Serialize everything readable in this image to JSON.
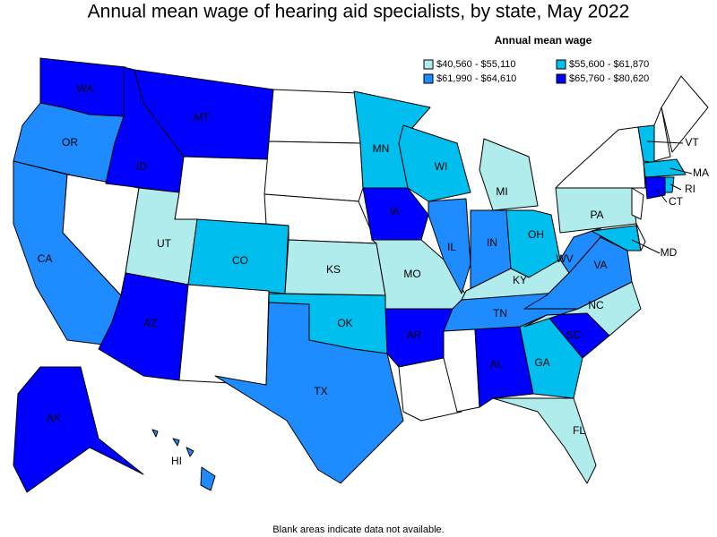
{
  "map": {
    "title": "Annual mean wage of hearing aid specialists, by state, May 2022",
    "legend_title": "Annual mean wage",
    "bins": [
      {
        "label": "$40,560 - $55,110",
        "color": "#b0ecec"
      },
      {
        "label": "$55,600 - $61,870",
        "color": "#00bfef"
      },
      {
        "label": "$61,990 - $64,610",
        "color": "#1e8cff"
      },
      {
        "label": "$65,760 - $80,620",
        "color": "#0000ff"
      }
    ],
    "states": [
      {
        "abbr": "WA",
        "bin": 3
      },
      {
        "abbr": "OR",
        "bin": 2
      },
      {
        "abbr": "CA",
        "bin": 2
      },
      {
        "abbr": "ID",
        "bin": 3
      },
      {
        "abbr": "MT",
        "bin": 3
      },
      {
        "abbr": "UT",
        "bin": 0
      },
      {
        "abbr": "CO",
        "bin": 1
      },
      {
        "abbr": "AZ",
        "bin": 3
      },
      {
        "abbr": "AK",
        "bin": 3
      },
      {
        "abbr": "HI",
        "bin": 2
      },
      {
        "abbr": "TX",
        "bin": 2
      },
      {
        "abbr": "KS",
        "bin": 0
      },
      {
        "abbr": "OK",
        "bin": 1
      },
      {
        "abbr": "MN",
        "bin": 1
      },
      {
        "abbr": "IA",
        "bin": 3
      },
      {
        "abbr": "MO",
        "bin": 0
      },
      {
        "abbr": "AR",
        "bin": 3
      },
      {
        "abbr": "WI",
        "bin": 1
      },
      {
        "abbr": "IL",
        "bin": 2
      },
      {
        "abbr": "MI",
        "bin": 0
      },
      {
        "abbr": "IN",
        "bin": 2
      },
      {
        "abbr": "KY",
        "bin": 0
      },
      {
        "abbr": "TN",
        "bin": 2
      },
      {
        "abbr": "AL",
        "bin": 3
      },
      {
        "abbr": "GA",
        "bin": 1
      },
      {
        "abbr": "FL",
        "bin": 0
      },
      {
        "abbr": "SC",
        "bin": 3
      },
      {
        "abbr": "NC",
        "bin": 0
      },
      {
        "abbr": "VA",
        "bin": 2
      },
      {
        "abbr": "WV",
        "bin": 2
      },
      {
        "abbr": "OH",
        "bin": 1
      },
      {
        "abbr": "PA",
        "bin": 0
      },
      {
        "abbr": "MD",
        "bin": 1
      },
      {
        "abbr": "VT",
        "bin": 1
      },
      {
        "abbr": "MA",
        "bin": 1
      },
      {
        "abbr": "RI",
        "bin": 1
      },
      {
        "abbr": "CT",
        "bin": 3
      }
    ],
    "note": "Blank areas indicate data not available."
  }
}
